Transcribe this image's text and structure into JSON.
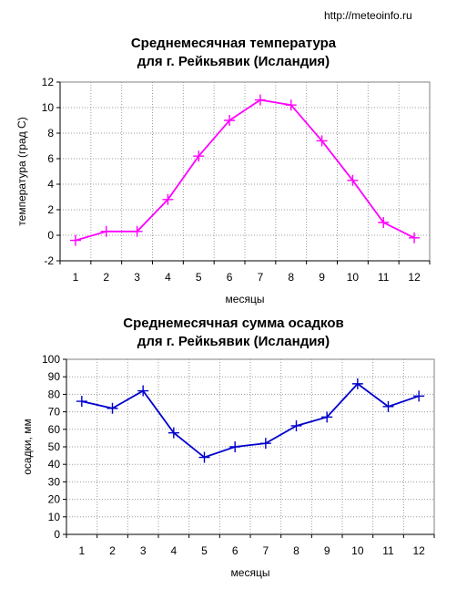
{
  "source_label": "http://meteoinfo.ru",
  "chart_data": [
    {
      "type": "line",
      "title_line1": "Среднемесячная температура",
      "title_line2": "для г.  Рейкьявик (Исландия)",
      "xlabel": "месяцы",
      "ylabel": "температура (град С)",
      "categories": [
        "1",
        "2",
        "3",
        "4",
        "5",
        "6",
        "7",
        "8",
        "9",
        "10",
        "11",
        "12"
      ],
      "yticks": [
        "-2",
        "0",
        "2",
        "4",
        "6",
        "8",
        "10",
        "12"
      ],
      "ylim": [
        -2,
        12
      ],
      "values": [
        -0.4,
        0.3,
        0.3,
        2.8,
        6.2,
        9.0,
        10.6,
        10.2,
        7.4,
        4.3,
        1.0,
        -0.2
      ],
      "color": "#ff00ff",
      "grid": true
    },
    {
      "type": "line",
      "title_line1": "Среднемесячная сумма осадков",
      "title_line2": "для г. Рейкьявик (Исландия)",
      "xlabel": "месяцы",
      "ylabel": "осадки, мм",
      "categories": [
        "1",
        "2",
        "3",
        "4",
        "5",
        "6",
        "7",
        "8",
        "9",
        "10",
        "11",
        "12"
      ],
      "yticks": [
        "0",
        "10",
        "20",
        "30",
        "40",
        "50",
        "60",
        "70",
        "80",
        "90",
        "100"
      ],
      "ylim": [
        0,
        100
      ],
      "values": [
        76,
        72,
        82,
        58,
        44,
        50,
        52,
        62,
        67,
        86,
        73,
        79
      ],
      "color": "#0000cc",
      "grid": true
    }
  ]
}
